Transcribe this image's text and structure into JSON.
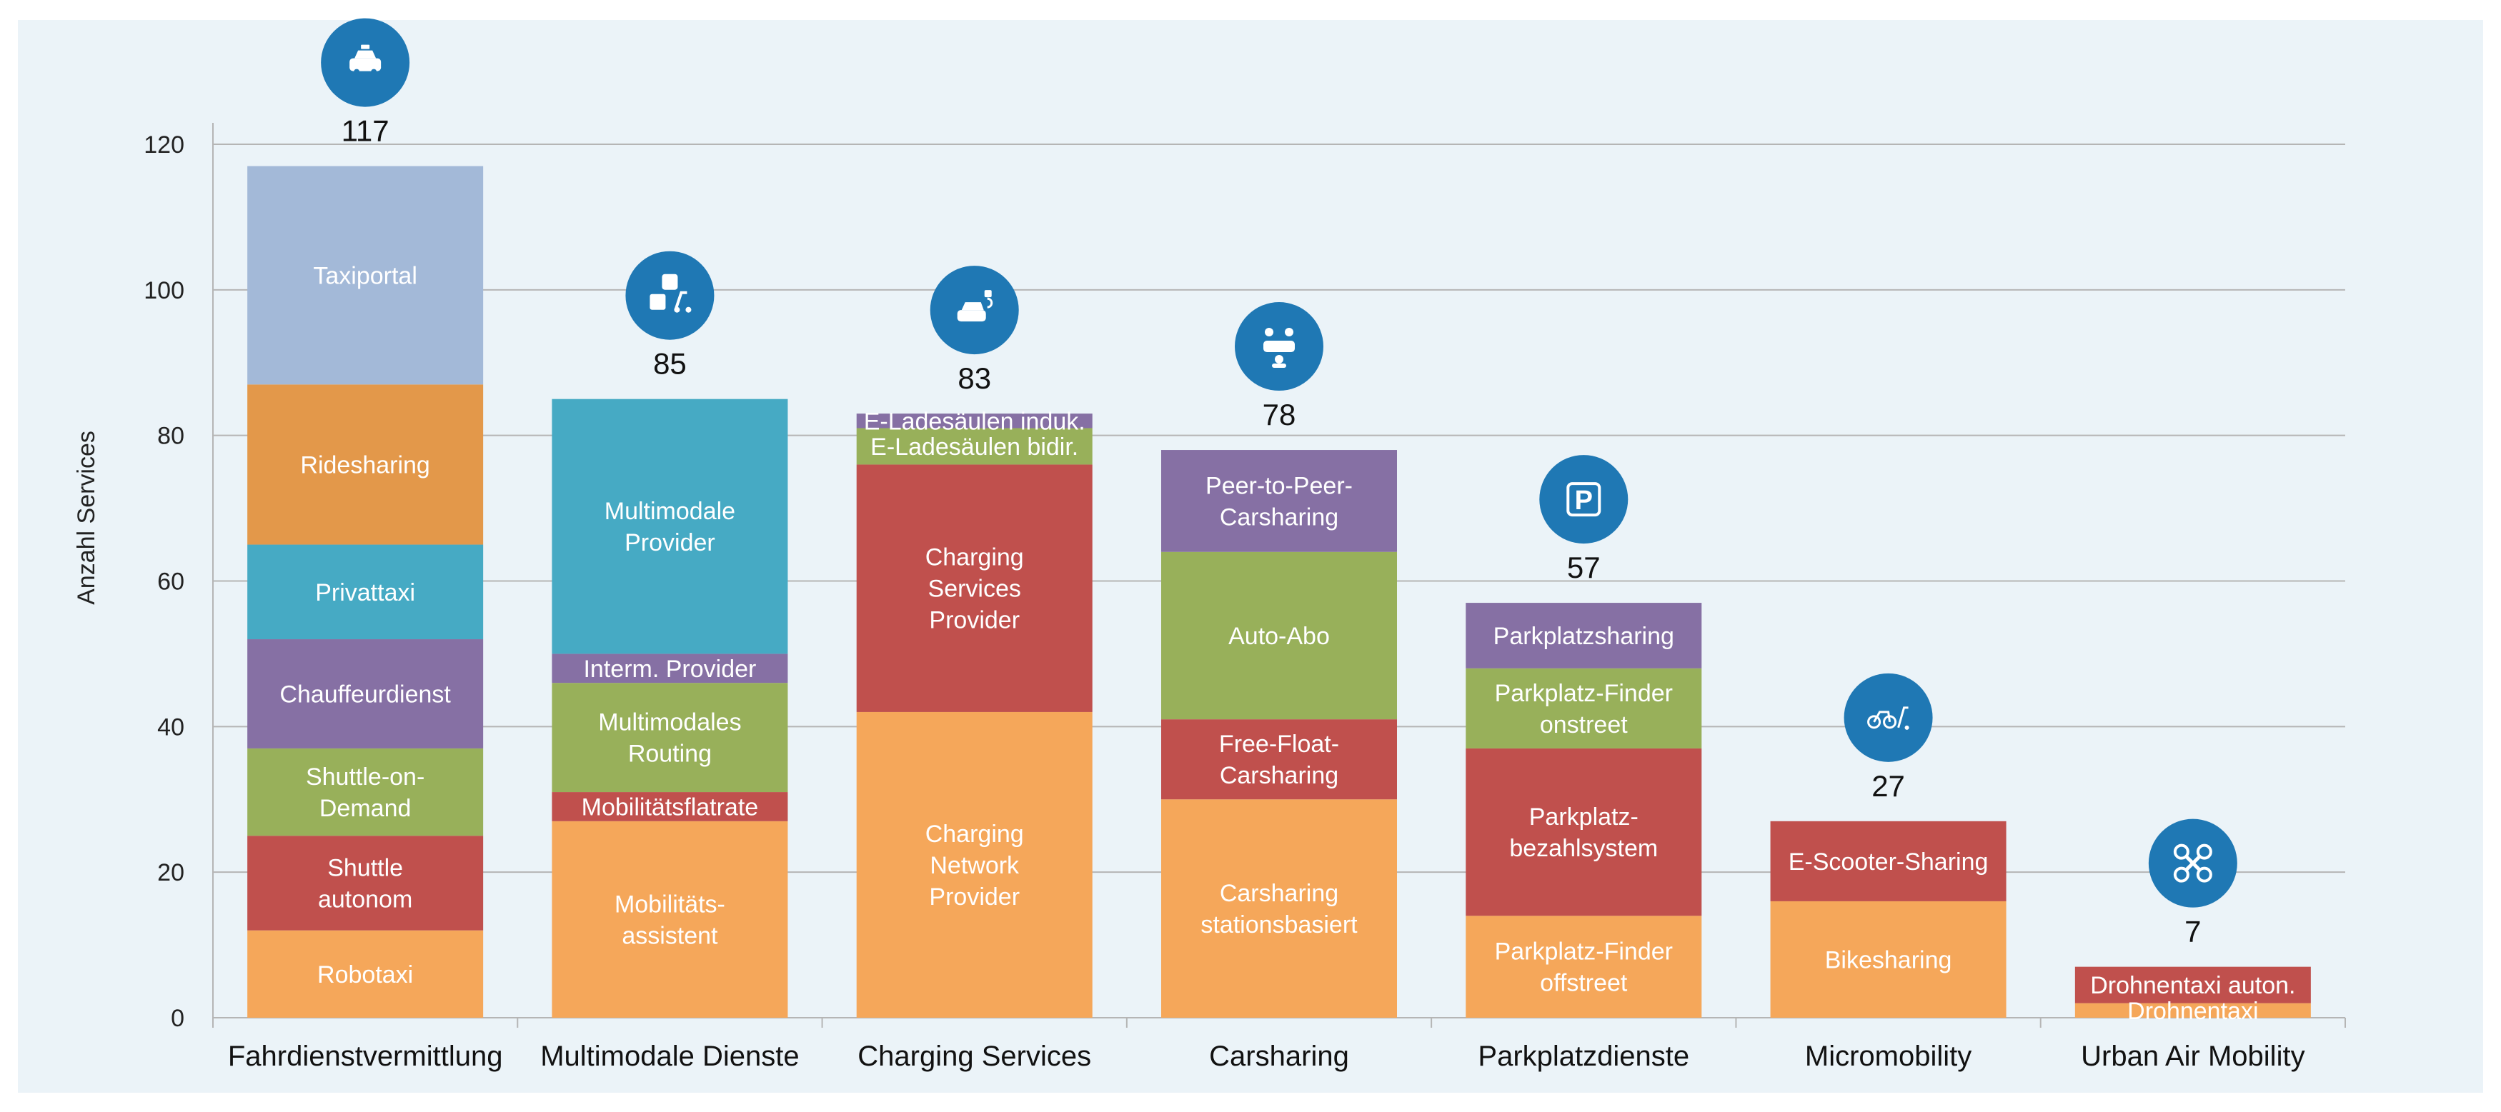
{
  "chart_data": {
    "type": "bar",
    "stacked": true,
    "ylabel": "Anzahl Services",
    "ylim": [
      0,
      120
    ],
    "yticks": [
      0,
      20,
      40,
      60,
      80,
      100,
      120
    ],
    "grid": true,
    "categories": [
      {
        "name": "Fahrdienstvermittlung",
        "total": 117,
        "icon": "taxi-icon",
        "segments": [
          {
            "label": "Robotaxi",
            "value": 12,
            "color": "#f5a75a"
          },
          {
            "label": "Shuttle\nautonom",
            "value": 13,
            "color": "#c0504d"
          },
          {
            "label": "Shuttle-on-\nDemand",
            "value": 12,
            "color": "#98b05a"
          },
          {
            "label": "Chauffeurdienst",
            "value": 15,
            "color": "#8670a4"
          },
          {
            "label": "Privattaxi",
            "value": 13,
            "color": "#46aac4"
          },
          {
            "label": "Ridesharing",
            "value": 22,
            "color": "#e3984a"
          },
          {
            "label": "Taxiportal",
            "value": 30,
            "color": "#a3b9d8"
          }
        ]
      },
      {
        "name": "Multimodale Dienste",
        "total": 85,
        "icon": "multimodal-transport-icon",
        "segments": [
          {
            "label": "Mobilitäts-\nassistent",
            "value": 27,
            "color": "#f5a75a"
          },
          {
            "label": "Mobilitätsflatrate",
            "value": 4,
            "color": "#c0504d"
          },
          {
            "label": "Multimodales\nRouting",
            "value": 15,
            "color": "#98b05a"
          },
          {
            "label": "Interm. Provider",
            "value": 4,
            "color": "#8670a4"
          },
          {
            "label": "Multimodale\nProvider",
            "value": 35,
            "color": "#46aac4"
          }
        ]
      },
      {
        "name": "Charging Services",
        "total": 83,
        "icon": "ev-charging-icon",
        "segments": [
          {
            "label": "Charging\nNetwork\nProvider",
            "value": 42,
            "color": "#f5a75a"
          },
          {
            "label": "Charging\nServices\nProvider",
            "value": 34,
            "color": "#c0504d"
          },
          {
            "label": "E-Ladesäulen bidir.",
            "value": 5,
            "color": "#98b05a"
          },
          {
            "label": "E-Ladesäulen induk.",
            "value": 2,
            "color": "#8670a4"
          }
        ]
      },
      {
        "name": "Carsharing",
        "total": 78,
        "icon": "carsharing-icon",
        "segments": [
          {
            "label": "Carsharing\nstationsbasiert",
            "value": 30,
            "color": "#f5a75a"
          },
          {
            "label": "Free-Float-\nCarsharing",
            "value": 11,
            "color": "#c0504d"
          },
          {
            "label": "Auto-Abo",
            "value": 23,
            "color": "#98b05a"
          },
          {
            "label": "Peer-to-Peer-\nCarsharing",
            "value": 14,
            "color": "#8670a4"
          }
        ]
      },
      {
        "name": "Parkplatzdienste",
        "total": 57,
        "icon": "parking-icon",
        "segments": [
          {
            "label": "Parkplatz-Finder\noffstreet",
            "value": 14,
            "color": "#f5a75a"
          },
          {
            "label": "Parkplatz-\nbezahlsystem",
            "value": 23,
            "color": "#c0504d"
          },
          {
            "label": "Parkplatz-Finder\nonstreet",
            "value": 11,
            "color": "#98b05a"
          },
          {
            "label": "Parkplatzsharing",
            "value": 9,
            "color": "#8670a4"
          }
        ]
      },
      {
        "name": "Micromobility",
        "total": 27,
        "icon": "bike-scooter-icon",
        "segments": [
          {
            "label": "Bikesharing",
            "value": 16,
            "color": "#f5a75a"
          },
          {
            "label": "E-Scooter-Sharing",
            "value": 11,
            "color": "#c0504d"
          }
        ]
      },
      {
        "name": "Urban Air Mobility",
        "total": 7,
        "icon": "drone-icon",
        "segments": [
          {
            "label": "Drohnentaxi",
            "value": 2,
            "color": "#f5a75a"
          },
          {
            "label": "Drohnentaxi auton.",
            "value": 5,
            "color": "#c0504d"
          }
        ]
      }
    ],
    "colors": {
      "background": "#ebf3f8",
      "icon_circle": "#1f78b4",
      "grid": "#b5b5b5",
      "axis_text": "#222222"
    }
  }
}
